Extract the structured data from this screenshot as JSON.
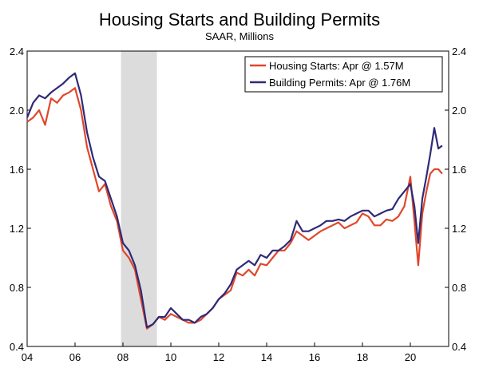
{
  "chart_data": {
    "type": "line",
    "title": "Housing Starts and Building Permits",
    "subtitle": "SAAR, Millions",
    "xlabel": "",
    "ylabel": "",
    "xlim": [
      2004.0,
      2021.6
    ],
    "ylim": [
      0.4,
      2.4
    ],
    "y_ticks": [
      0.4,
      0.8,
      1.2,
      1.6,
      2.0,
      2.4
    ],
    "y_tick_labels": [
      "0.4",
      "0.8",
      "1.2",
      "1.6",
      "2.0",
      "2.4"
    ],
    "x_ticks": [
      2004,
      2006,
      2008,
      2010,
      2012,
      2014,
      2016,
      2018,
      2020
    ],
    "x_tick_labels": [
      "04",
      "06",
      "08",
      "10",
      "12",
      "14",
      "16",
      "18",
      "20"
    ],
    "legend_position": "top-right",
    "recession_shading": [
      2007.92,
      2009.42
    ],
    "colors": {
      "housing_starts": "#e0472b",
      "building_permits": "#2e2a78",
      "recession": "#dcdcdc"
    },
    "series": [
      {
        "name": "Housing Starts: Apr @ 1.57M",
        "x": [
          2004.0,
          2004.25,
          2004.5,
          2004.75,
          2005.0,
          2005.25,
          2005.5,
          2005.75,
          2006.0,
          2006.25,
          2006.5,
          2006.75,
          2007.0,
          2007.25,
          2007.5,
          2007.75,
          2008.0,
          2008.25,
          2008.5,
          2008.75,
          2009.0,
          2009.25,
          2009.5,
          2009.75,
          2010.0,
          2010.25,
          2010.5,
          2010.75,
          2011.0,
          2011.25,
          2011.5,
          2011.75,
          2012.0,
          2012.25,
          2012.5,
          2012.75,
          2013.0,
          2013.25,
          2013.5,
          2013.75,
          2014.0,
          2014.25,
          2014.5,
          2014.75,
          2015.0,
          2015.25,
          2015.5,
          2015.75,
          2016.0,
          2016.25,
          2016.5,
          2016.75,
          2017.0,
          2017.25,
          2017.5,
          2017.75,
          2018.0,
          2018.25,
          2018.5,
          2018.75,
          2019.0,
          2019.25,
          2019.5,
          2019.75,
          2020.0,
          2020.17,
          2020.33,
          2020.5,
          2020.67,
          2020.83,
          2021.0,
          2021.17,
          2021.33
        ],
        "values": [
          1.92,
          1.95,
          2.0,
          1.9,
          2.08,
          2.05,
          2.1,
          2.12,
          2.15,
          2.0,
          1.75,
          1.6,
          1.45,
          1.5,
          1.35,
          1.25,
          1.05,
          1.0,
          0.92,
          0.72,
          0.52,
          0.55,
          0.6,
          0.58,
          0.62,
          0.6,
          0.58,
          0.56,
          0.56,
          0.58,
          0.62,
          0.66,
          0.72,
          0.75,
          0.78,
          0.9,
          0.88,
          0.92,
          0.88,
          0.96,
          0.95,
          1.0,
          1.05,
          1.05,
          1.1,
          1.18,
          1.15,
          1.12,
          1.15,
          1.18,
          1.2,
          1.22,
          1.24,
          1.2,
          1.22,
          1.24,
          1.3,
          1.28,
          1.22,
          1.22,
          1.26,
          1.25,
          1.28,
          1.35,
          1.55,
          1.25,
          0.95,
          1.3,
          1.45,
          1.57,
          1.6,
          1.6,
          1.57
        ]
      },
      {
        "name": "Building Permits: Apr @ 1.76M",
        "x": [
          2004.0,
          2004.25,
          2004.5,
          2004.75,
          2005.0,
          2005.25,
          2005.5,
          2005.75,
          2006.0,
          2006.25,
          2006.5,
          2006.75,
          2007.0,
          2007.25,
          2007.5,
          2007.75,
          2008.0,
          2008.25,
          2008.5,
          2008.75,
          2009.0,
          2009.25,
          2009.5,
          2009.75,
          2010.0,
          2010.25,
          2010.5,
          2010.75,
          2011.0,
          2011.25,
          2011.5,
          2011.75,
          2012.0,
          2012.25,
          2012.5,
          2012.75,
          2013.0,
          2013.25,
          2013.5,
          2013.75,
          2014.0,
          2014.25,
          2014.5,
          2014.75,
          2015.0,
          2015.25,
          2015.5,
          2015.75,
          2016.0,
          2016.25,
          2016.5,
          2016.75,
          2017.0,
          2017.25,
          2017.5,
          2017.75,
          2018.0,
          2018.25,
          2018.5,
          2018.75,
          2019.0,
          2019.25,
          2019.5,
          2019.75,
          2020.0,
          2020.17,
          2020.33,
          2020.5,
          2020.67,
          2020.83,
          2021.0,
          2021.17,
          2021.33
        ],
        "values": [
          1.95,
          2.05,
          2.1,
          2.08,
          2.12,
          2.15,
          2.18,
          2.22,
          2.25,
          2.1,
          1.85,
          1.68,
          1.55,
          1.52,
          1.4,
          1.28,
          1.1,
          1.05,
          0.95,
          0.78,
          0.53,
          0.55,
          0.6,
          0.6,
          0.66,
          0.62,
          0.58,
          0.58,
          0.56,
          0.6,
          0.62,
          0.66,
          0.72,
          0.76,
          0.82,
          0.92,
          0.95,
          0.98,
          0.95,
          1.02,
          1.0,
          1.05,
          1.05,
          1.08,
          1.12,
          1.25,
          1.18,
          1.18,
          1.2,
          1.22,
          1.25,
          1.25,
          1.26,
          1.25,
          1.28,
          1.3,
          1.32,
          1.32,
          1.28,
          1.3,
          1.32,
          1.33,
          1.4,
          1.45,
          1.5,
          1.35,
          1.1,
          1.4,
          1.55,
          1.7,
          1.88,
          1.74,
          1.76
        ]
      }
    ]
  }
}
